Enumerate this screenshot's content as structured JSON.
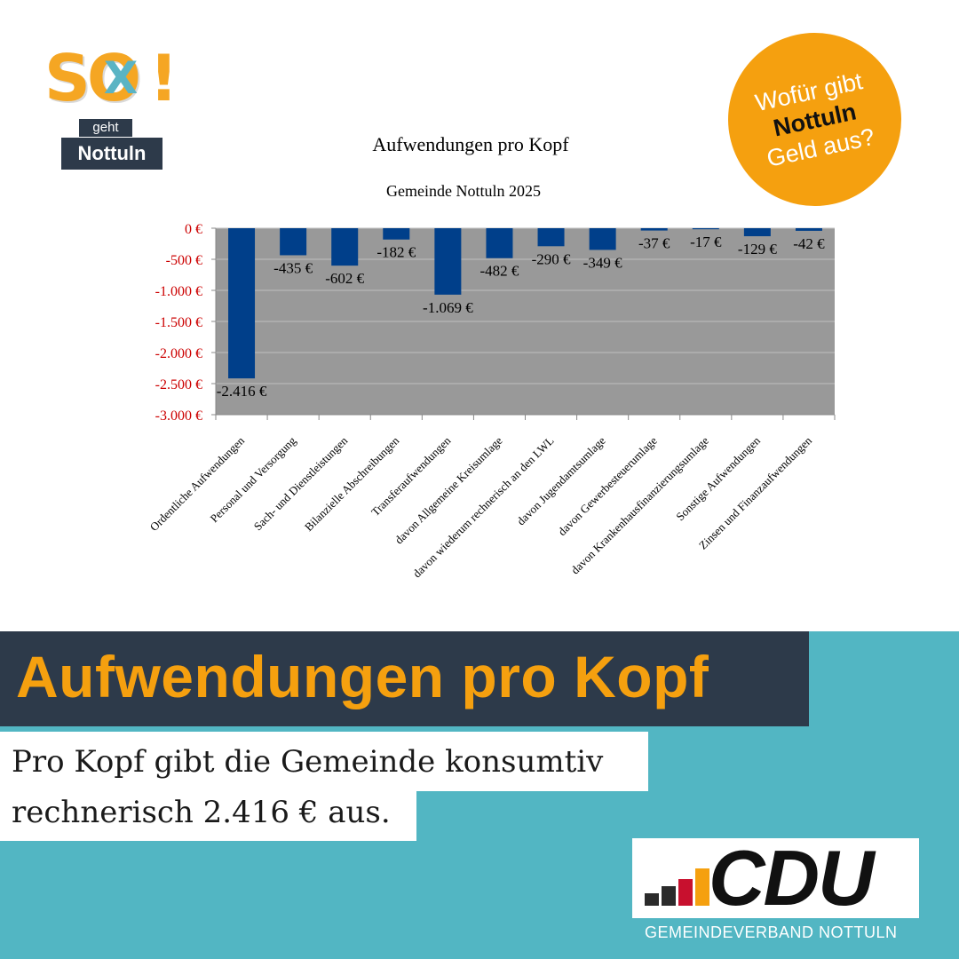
{
  "logo": {
    "so": "SO",
    "x": "X",
    "excl": "!",
    "geht": "geht",
    "town": "Nottuln"
  },
  "badge": {
    "line1": "Wofür gibt",
    "line2": "Nottuln",
    "line3": "Geld aus?"
  },
  "chart_data": {
    "type": "bar",
    "title": "Aufwendungen pro Kopf",
    "subtitle": "Gemeinde Nottuln 2025",
    "categories": [
      "Ordentliche Aufwendungen",
      "Personal und Versorgung",
      "Sach- und Dienstleistungen",
      "Bilanzielle Abschreibungen",
      "Transferaufwendungen",
      "davon Allgemeine Kreisumlage",
      "davon wiederum rechnerisch an den LWL",
      "davon Jugendamtsumlage",
      "davon Gewerbesteuerumlage",
      "davon Krankenhausfinanzierungsumlage",
      "Sonstige Aufwendungen",
      "Zinsen und Finanzaufwendungen"
    ],
    "values": [
      -2416,
      -435,
      -602,
      -182,
      -1069,
      -482,
      -290,
      -349,
      -37,
      -17,
      -129,
      -42
    ],
    "value_labels": [
      "-2.416 €",
      "-435 €",
      "-602 €",
      "-182 €",
      "-1.069 €",
      "-482 €",
      "-290 €",
      "-349 €",
      "-37 €",
      "-17 €",
      "-129 €",
      "-42 €"
    ],
    "ylim": [
      -3000,
      0
    ],
    "yticks": [
      0,
      -500,
      -1000,
      -1500,
      -2000,
      -2500,
      -3000
    ],
    "ytick_labels": [
      "0 €",
      "-500 €",
      "-1.000 €",
      "-1.500 €",
      "-2.000 €",
      "-2.500 €",
      "-3.000 €"
    ],
    "grid": true,
    "bar_color": "#003f8a",
    "plot_background": "#999999",
    "tick_label_color": "#cc0000"
  },
  "headline": "Aufwendungen pro Kopf",
  "body_text": {
    "line1": "Pro Kopf gibt die Gemeinde konsumtiv",
    "line2": "rechnerisch 2.416 € aus."
  },
  "cdu": {
    "word": "CDU",
    "sub": "GEMEINDEVERBAND NOTTULN"
  },
  "colors": {
    "orange": "#f5a00f",
    "navy": "#2d3a4a",
    "teal": "#52b6c3"
  }
}
